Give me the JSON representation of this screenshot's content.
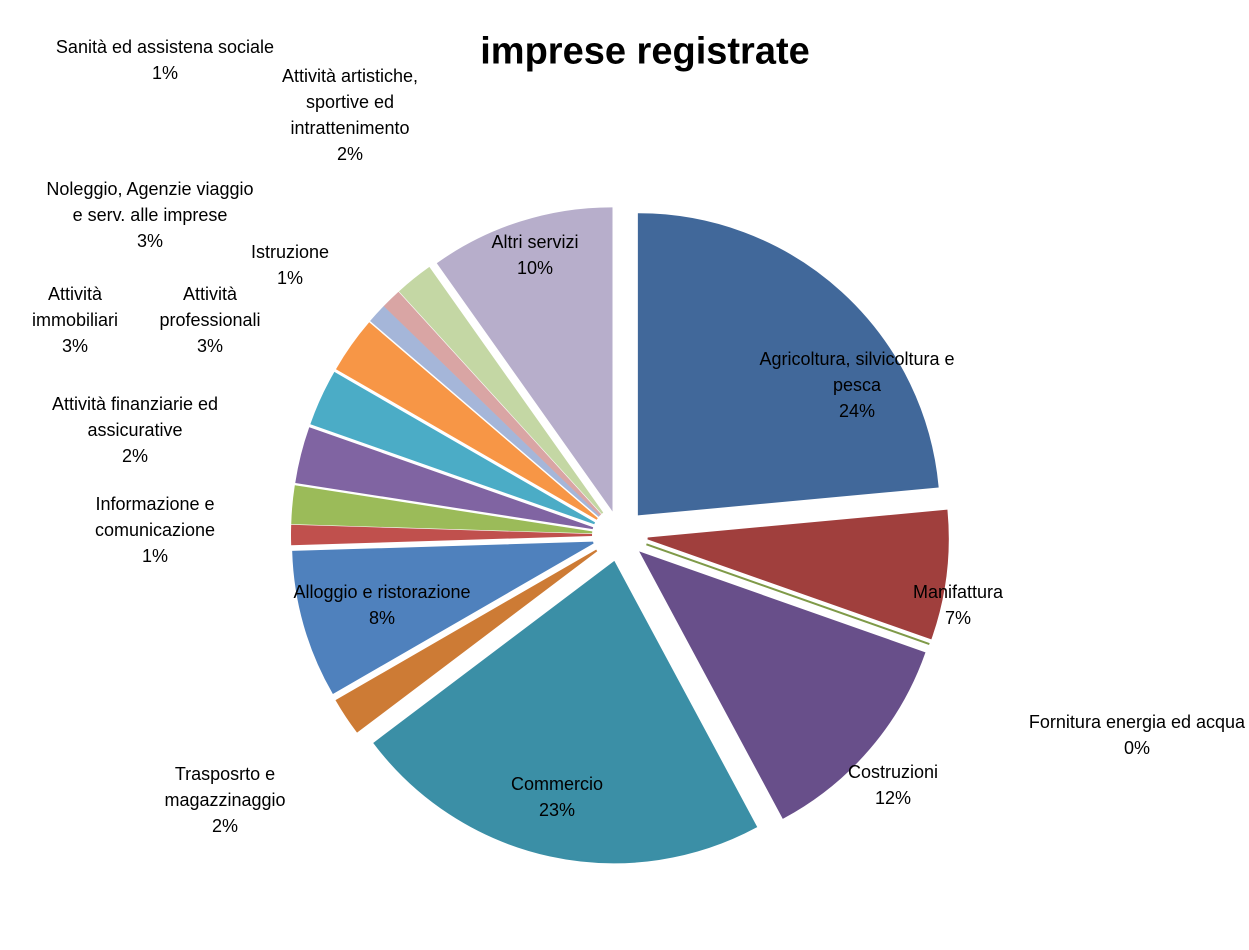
{
  "chart_data": {
    "type": "pie",
    "title": "imprese registrate",
    "categories": [
      "Agricoltura, silvicoltura e pesca",
      "Manifattura",
      "Fornitura energia ed acqua",
      "Costruzioni",
      "Commercio",
      "Trasposrto e magazzinaggio",
      "Alloggio e ristorazione",
      "Informazione e comunicazione",
      "Attività finanziarie ed assicurative",
      "Attività immobiliari",
      "Attività professionali",
      "Noleggio, Agenzie viaggio e serv. alle imprese",
      "Istruzione",
      "Sanità ed assistena sociale",
      "Attività artistiche, sportive ed intrattenimento",
      "Altri servizi"
    ],
    "values": [
      24,
      7,
      0,
      12,
      23,
      2,
      8,
      1,
      2,
      3,
      3,
      3,
      1,
      1,
      2,
      10
    ],
    "value_labels": [
      "24%",
      "7%",
      "0%",
      "12%",
      "23%",
      "2%",
      "8%",
      "1%",
      "2%",
      "3%",
      "3%",
      "3%",
      "1%",
      "1%",
      "2%",
      "10%"
    ],
    "colors": [
      "#41689a",
      "#a03f3d",
      "#7f9a48",
      "#684f8a",
      "#3b8fa6",
      "#cd7b35",
      "#4f81bd",
      "#c0504d",
      "#9bbb59",
      "#8064a2",
      "#4bacc6",
      "#f79646",
      "#a5b6d9",
      "#d9a5a4",
      "#c4d7a4",
      "#b7aecb"
    ]
  }
}
